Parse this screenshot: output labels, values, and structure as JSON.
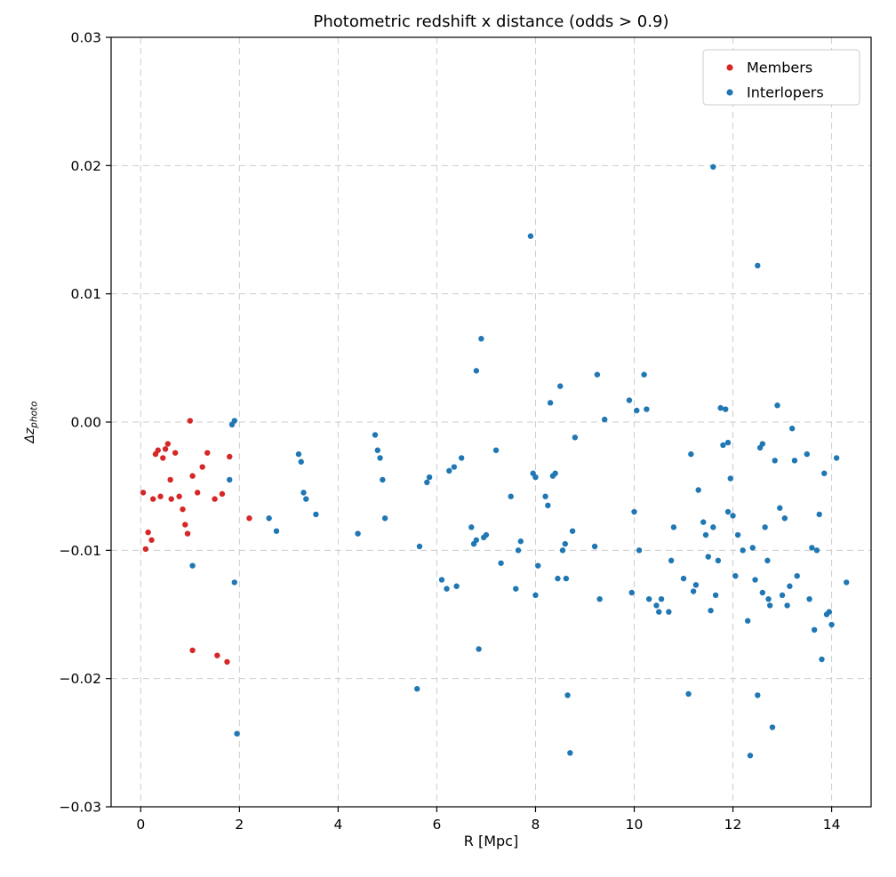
{
  "chart_data": {
    "type": "scatter",
    "title": "Photometric redshift x distance (odds > 0.9)",
    "xlabel": "R [Mpc]",
    "ylabel_main": "Δz",
    "ylabel_sub": "photo",
    "xlim": [
      -0.6,
      14.8
    ],
    "ylim": [
      -0.03,
      0.03
    ],
    "xticks": [
      0,
      2,
      4,
      6,
      8,
      10,
      12,
      14
    ],
    "xtick_labels": [
      "0",
      "2",
      "4",
      "6",
      "8",
      "10",
      "12",
      "14"
    ],
    "yticks": [
      -0.03,
      -0.02,
      -0.01,
      0.0,
      0.01,
      0.02,
      0.03
    ],
    "ytick_labels": [
      "−0.03",
      "−0.02",
      "−0.01",
      "0.00",
      "0.01",
      "0.02",
      "0.03"
    ],
    "grid": true,
    "grid_color": "#cccccc",
    "legend": {
      "position": "upper right",
      "entries": [
        {
          "label": "Members",
          "color": "#d62728"
        },
        {
          "label": "Interlopers",
          "color": "#1f77b4"
        }
      ]
    },
    "series": [
      {
        "name": "Members",
        "color": "#d62728",
        "points": [
          [
            0.05,
            -0.0055
          ],
          [
            0.1,
            -0.0099
          ],
          [
            0.15,
            -0.0086
          ],
          [
            0.22,
            -0.0092
          ],
          [
            0.25,
            -0.006
          ],
          [
            0.3,
            -0.0025
          ],
          [
            0.35,
            -0.0022
          ],
          [
            0.4,
            -0.0058
          ],
          [
            0.45,
            -0.0028
          ],
          [
            0.5,
            -0.0021
          ],
          [
            0.55,
            -0.0017
          ],
          [
            0.6,
            -0.0045
          ],
          [
            0.62,
            -0.006
          ],
          [
            0.7,
            -0.0024
          ],
          [
            0.78,
            -0.0058
          ],
          [
            0.85,
            -0.0068
          ],
          [
            0.9,
            -0.008
          ],
          [
            0.95,
            -0.0087
          ],
          [
            1.0,
            0.0001
          ],
          [
            1.05,
            -0.0042
          ],
          [
            1.05,
            -0.0178
          ],
          [
            1.15,
            -0.0055
          ],
          [
            1.25,
            -0.0035
          ],
          [
            1.35,
            -0.0024
          ],
          [
            1.5,
            -0.006
          ],
          [
            1.55,
            -0.0182
          ],
          [
            1.65,
            -0.0056
          ],
          [
            1.75,
            -0.0187
          ],
          [
            1.8,
            -0.0027
          ],
          [
            2.2,
            -0.0075
          ]
        ]
      },
      {
        "name": "Interlopers",
        "color": "#1f77b4",
        "points": [
          [
            1.05,
            -0.0112
          ],
          [
            1.8,
            -0.0045
          ],
          [
            1.85,
            -0.0002
          ],
          [
            1.9,
            0.0001
          ],
          [
            1.9,
            -0.0125
          ],
          [
            1.95,
            -0.0243
          ],
          [
            2.6,
            -0.0075
          ],
          [
            2.75,
            -0.0085
          ],
          [
            3.2,
            -0.0025
          ],
          [
            3.25,
            -0.0031
          ],
          [
            3.3,
            -0.0055
          ],
          [
            3.35,
            -0.006
          ],
          [
            3.55,
            -0.0072
          ],
          [
            4.4,
            -0.0087
          ],
          [
            4.75,
            -0.001
          ],
          [
            4.8,
            -0.0022
          ],
          [
            4.85,
            -0.0028
          ],
          [
            4.9,
            -0.0045
          ],
          [
            4.95,
            -0.0075
          ],
          [
            5.6,
            -0.0208
          ],
          [
            5.65,
            -0.0097
          ],
          [
            5.8,
            -0.0047
          ],
          [
            5.85,
            -0.0043
          ],
          [
            6.1,
            -0.0123
          ],
          [
            6.2,
            -0.013
          ],
          [
            6.25,
            -0.0038
          ],
          [
            6.35,
            -0.0035
          ],
          [
            6.4,
            -0.0128
          ],
          [
            6.5,
            -0.0028
          ],
          [
            6.7,
            -0.0082
          ],
          [
            6.75,
            -0.0095
          ],
          [
            6.8,
            0.004
          ],
          [
            6.8,
            -0.0092
          ],
          [
            6.85,
            -0.0177
          ],
          [
            6.9,
            0.0065
          ],
          [
            6.95,
            -0.009
          ],
          [
            7.0,
            -0.0088
          ],
          [
            7.2,
            -0.0022
          ],
          [
            7.3,
            -0.011
          ],
          [
            7.5,
            -0.0058
          ],
          [
            7.6,
            -0.013
          ],
          [
            7.65,
            -0.01
          ],
          [
            7.7,
            -0.0093
          ],
          [
            7.9,
            0.0145
          ],
          [
            7.95,
            -0.004
          ],
          [
            8.0,
            -0.0043
          ],
          [
            8.0,
            -0.0135
          ],
          [
            8.05,
            -0.0112
          ],
          [
            8.2,
            -0.0058
          ],
          [
            8.25,
            -0.0065
          ],
          [
            8.3,
            0.0015
          ],
          [
            8.35,
            -0.0042
          ],
          [
            8.4,
            -0.004
          ],
          [
            8.45,
            -0.0122
          ],
          [
            8.5,
            0.0028
          ],
          [
            8.55,
            -0.01
          ],
          [
            8.6,
            -0.0095
          ],
          [
            8.62,
            -0.0122
          ],
          [
            8.65,
            -0.0213
          ],
          [
            8.7,
            -0.0258
          ],
          [
            8.75,
            -0.0085
          ],
          [
            8.8,
            -0.0012
          ],
          [
            9.2,
            -0.0097
          ],
          [
            9.25,
            0.0037
          ],
          [
            9.3,
            -0.0138
          ],
          [
            9.4,
            0.0002
          ],
          [
            9.9,
            0.0017
          ],
          [
            9.95,
            -0.0133
          ],
          [
            10.0,
            -0.007
          ],
          [
            10.05,
            0.0009
          ],
          [
            10.1,
            -0.01
          ],
          [
            10.2,
            0.0037
          ],
          [
            10.25,
            0.001
          ],
          [
            10.3,
            -0.0138
          ],
          [
            10.45,
            -0.0143
          ],
          [
            10.5,
            -0.0148
          ],
          [
            10.55,
            -0.0138
          ],
          [
            10.7,
            -0.0148
          ],
          [
            10.75,
            -0.0108
          ],
          [
            10.8,
            -0.0082
          ],
          [
            11.0,
            -0.0122
          ],
          [
            11.1,
            -0.0212
          ],
          [
            11.15,
            -0.0025
          ],
          [
            11.2,
            -0.0132
          ],
          [
            11.25,
            -0.0127
          ],
          [
            11.3,
            -0.0053
          ],
          [
            11.4,
            -0.0078
          ],
          [
            11.45,
            -0.0088
          ],
          [
            11.5,
            -0.0105
          ],
          [
            11.55,
            -0.0147
          ],
          [
            11.6,
            0.0199
          ],
          [
            11.6,
            -0.0082
          ],
          [
            11.65,
            -0.0135
          ],
          [
            11.7,
            -0.0108
          ],
          [
            11.75,
            0.0011
          ],
          [
            11.8,
            -0.0018
          ],
          [
            11.85,
            0.001
          ],
          [
            11.9,
            -0.0016
          ],
          [
            11.9,
            -0.007
          ],
          [
            11.95,
            -0.0044
          ],
          [
            12.0,
            -0.0073
          ],
          [
            12.05,
            -0.012
          ],
          [
            12.1,
            -0.0088
          ],
          [
            12.2,
            -0.01
          ],
          [
            12.3,
            -0.0155
          ],
          [
            12.35,
            -0.026
          ],
          [
            12.4,
            -0.0098
          ],
          [
            12.45,
            -0.0123
          ],
          [
            12.5,
            0.0122
          ],
          [
            12.5,
            -0.0213
          ],
          [
            12.55,
            -0.002
          ],
          [
            12.6,
            -0.0017
          ],
          [
            12.6,
            -0.0133
          ],
          [
            12.65,
            -0.0082
          ],
          [
            12.7,
            -0.0108
          ],
          [
            12.72,
            -0.0138
          ],
          [
            12.75,
            -0.0143
          ],
          [
            12.8,
            -0.0238
          ],
          [
            12.85,
            -0.003
          ],
          [
            12.9,
            0.0013
          ],
          [
            12.95,
            -0.0067
          ],
          [
            13.0,
            -0.0135
          ],
          [
            13.05,
            -0.0075
          ],
          [
            13.1,
            -0.0143
          ],
          [
            13.15,
            -0.0128
          ],
          [
            13.2,
            -0.0005
          ],
          [
            13.25,
            -0.003
          ],
          [
            13.3,
            -0.012
          ],
          [
            13.5,
            -0.0025
          ],
          [
            13.55,
            -0.0138
          ],
          [
            13.6,
            -0.0098
          ],
          [
            13.65,
            -0.0162
          ],
          [
            13.7,
            -0.01
          ],
          [
            13.75,
            -0.0072
          ],
          [
            13.8,
            -0.0185
          ],
          [
            13.85,
            -0.004
          ],
          [
            13.9,
            -0.015
          ],
          [
            13.95,
            -0.0148
          ],
          [
            14.0,
            -0.0158
          ],
          [
            14.1,
            -0.0028
          ],
          [
            14.3,
            -0.0125
          ]
        ]
      }
    ]
  }
}
